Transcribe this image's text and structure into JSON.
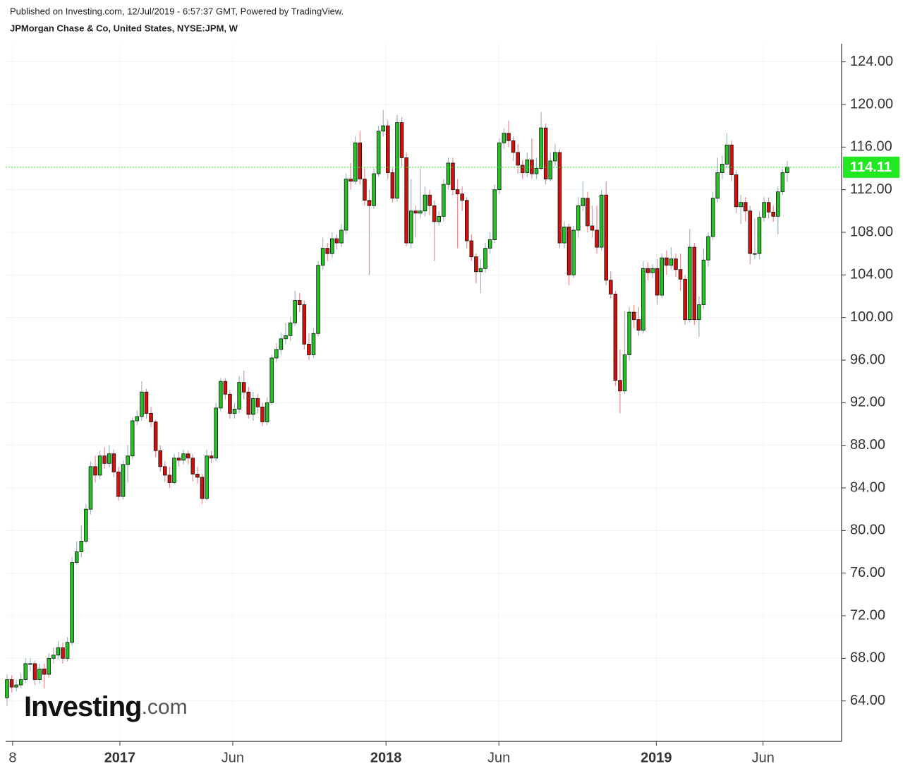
{
  "header": {
    "published": "Published on Investing.com, 12/Jul/2019 - 6:57:37 GMT, Powered by TradingView."
  },
  "watermark": {
    "brand": "Investing",
    "suffix": ".com"
  },
  "chart_data": {
    "type": "candlestick",
    "title": "JPMorgan Chase & Co, United States, NYSE:JPM, W",
    "up_color": "#22c322",
    "down_color": "#d0100c",
    "up_wick": "#9fb8c0",
    "down_wick": "#ee8a90",
    "price_line_color": "#22e822",
    "grid": true,
    "xlim": [
      -0.3,
      179.7
    ],
    "xticks": [
      {
        "value": 1.2,
        "label": "8"
      },
      {
        "value": 24.3,
        "label": "2017"
      },
      {
        "value": 48.6,
        "label": "Jun"
      },
      {
        "value": 81.6,
        "label": "2018"
      },
      {
        "value": 105.9,
        "label": "Jun"
      },
      {
        "value": 139.8,
        "label": "2019"
      },
      {
        "value": 162.8,
        "label": "Jun"
      }
    ],
    "ylim": [
      60.2,
      125.7
    ],
    "yticks": [
      {
        "value": 64,
        "label": "64.00"
      },
      {
        "value": 68,
        "label": "68.00"
      },
      {
        "value": 72,
        "label": "72.00"
      },
      {
        "value": 76,
        "label": "76.00"
      },
      {
        "value": 80,
        "label": "80.00"
      },
      {
        "value": 84,
        "label": "84.00"
      },
      {
        "value": 88,
        "label": "88.00"
      },
      {
        "value": 92,
        "label": "92.00"
      },
      {
        "value": 96,
        "label": "96.00"
      },
      {
        "value": 100,
        "label": "100.00"
      },
      {
        "value": 104,
        "label": "104.00"
      },
      {
        "value": 108,
        "label": "108.00"
      },
      {
        "value": 112,
        "label": "112.00"
      },
      {
        "value": 116,
        "label": "116.00"
      },
      {
        "value": 120,
        "label": "120.00"
      },
      {
        "value": 124,
        "label": "124.00"
      }
    ],
    "open": [
      64.3,
      66,
      65.3,
      65.5,
      66,
      67.5,
      67.5,
      66,
      67,
      66.5,
      68,
      68.3,
      69,
      68,
      69.5,
      77,
      78,
      79,
      82,
      86,
      85.2,
      87,
      86.3,
      87.2,
      85.5,
      83.2,
      86.2,
      87,
      90.3,
      90.7,
      93,
      91,
      90.2,
      87.5,
      86,
      85.2,
      84.5,
      86.8,
      86.6,
      87.2,
      86.8,
      85.3,
      85,
      83,
      87,
      86.8,
      91.5,
      94,
      92.8,
      91,
      91.4,
      93.9,
      93,
      90.9,
      92.4,
      91.6,
      90.2,
      92,
      96.2,
      97,
      98,
      98.3,
      99.5,
      101.6,
      101.2,
      97.5,
      96.5,
      98.5,
      104.9,
      106.5,
      106,
      107.4,
      107,
      108.2,
      113,
      112.8,
      116.4,
      113,
      111,
      110.5,
      113.5,
      117.5,
      118,
      113.6,
      111.2,
      118.3,
      115,
      107,
      110,
      109.8,
      110,
      111.5,
      110.5,
      109,
      109.5,
      112.5,
      114.5,
      112,
      111.6,
      111,
      107.2,
      105.7,
      104.3,
      104.6,
      106.5,
      107.3,
      112,
      116.4,
      117.3,
      116.6,
      115.5,
      114.3,
      113.6,
      114.8,
      113.5,
      114,
      117.8,
      113,
      114.7,
      115.5,
      107,
      108.5,
      104,
      108.2,
      110.5,
      111.2,
      108.6,
      108.2,
      106.6,
      111.5,
      103.5,
      102.2,
      94.1,
      93.1,
      96.5,
      100.5,
      99.8,
      98.8,
      104.6,
      104.2,
      104.6,
      102.1,
      105.6,
      104.9,
      105.5,
      104.5,
      103.6,
      99.8,
      106.6,
      99.8,
      101.2,
      105.4,
      107.6,
      111.2,
      113.6,
      114.4,
      116.2,
      113.4,
      110.4,
      110.8,
      110,
      106,
      106,
      109.4,
      110.8,
      109.9,
      109.5,
      111.8,
      113.6
    ],
    "high": [
      66.5,
      66.4,
      66,
      66.6,
      68,
      68,
      67.8,
      67.5,
      67.5,
      68.5,
      69,
      69.6,
      69.5,
      70,
      77.5,
      79,
      80.5,
      82.5,
      86.5,
      87,
      87.5,
      87.8,
      88,
      87.6,
      86,
      86.6,
      88,
      90.6,
      91.3,
      94,
      93.3,
      91.6,
      90.4,
      88,
      86.5,
      86,
      87.2,
      87.4,
      87.6,
      87.5,
      87.2,
      86,
      85.3,
      87.6,
      87.5,
      92,
      94.3,
      94.3,
      93.2,
      92,
      94.5,
      95,
      93.5,
      93,
      92.8,
      92,
      92.5,
      96.5,
      97.6,
      98.6,
      99.5,
      100,
      102.5,
      102.3,
      101.6,
      98.5,
      99,
      105.3,
      107.5,
      107,
      108,
      107.8,
      108.8,
      113.5,
      114.5,
      117,
      117.5,
      114,
      112,
      114,
      118,
      119.5,
      118.5,
      114,
      119,
      118.8,
      115.5,
      113,
      110.5,
      114,
      112.3,
      112,
      111,
      110,
      113,
      115,
      115,
      113,
      112.3,
      111.3,
      107.8,
      106,
      105.5,
      107,
      108,
      112.5,
      116.8,
      117.8,
      118.5,
      117,
      116.3,
      114.8,
      115.5,
      116.8,
      115,
      119.3,
      118.2,
      115.5,
      116.3,
      115.8,
      109,
      108.8,
      108.6,
      111.3,
      112.8,
      111.8,
      110.5,
      110.5,
      112,
      112.8,
      104.3,
      102.5,
      97,
      100.6,
      101,
      101.2,
      101,
      105.3,
      105.2,
      105,
      105.5,
      106,
      106.3,
      106.6,
      106,
      106,
      104,
      108.3,
      107,
      102,
      106.5,
      108,
      111.8,
      115,
      115.2,
      117.3,
      116.6,
      113.8,
      111.5,
      111.3,
      110.5,
      109.3,
      110,
      111.3,
      111.3,
      110.5,
      112.3,
      114,
      114.7
    ],
    "low": [
      63.5,
      64.8,
      64.9,
      65.2,
      65.7,
      66.8,
      65.5,
      65.6,
      65.2,
      66.2,
      67.5,
      67.9,
      67.5,
      67.7,
      69.2,
      76.8,
      77.5,
      78.8,
      81.5,
      84.5,
      84.8,
      85.8,
      85.9,
      85,
      82.8,
      82.9,
      84.5,
      86.7,
      89.9,
      90.3,
      90.5,
      89.7,
      86.9,
      85.5,
      84.6,
      84,
      84.3,
      86,
      86.2,
      86.2,
      84.6,
      84.4,
      82.5,
      82.8,
      86.3,
      86.5,
      91.2,
      92.3,
      90.5,
      90.5,
      91,
      92.3,
      90.5,
      90.3,
      91,
      89.8,
      89.9,
      91.8,
      95.8,
      96.5,
      97.5,
      97.8,
      99.2,
      100.5,
      97,
      96,
      96.2,
      98.2,
      104.5,
      105.3,
      105.6,
      106.4,
      106.6,
      107.8,
      112,
      112.5,
      112.5,
      110.5,
      104,
      110.2,
      113.2,
      117,
      113,
      110.8,
      110.9,
      114.2,
      106.7,
      106.5,
      107.5,
      109.3,
      109.5,
      109.6,
      105.3,
      108.6,
      109,
      112,
      111.5,
      106.5,
      110,
      106.5,
      105.3,
      103.2,
      102.3,
      104.2,
      106,
      107,
      111.6,
      115.8,
      116,
      114.7,
      113.5,
      113,
      113.2,
      113,
      113,
      113.8,
      112.5,
      112.8,
      114.2,
      106.5,
      106.5,
      103,
      103.7,
      107.5,
      110,
      108,
      107.5,
      106,
      106.3,
      103,
      101.8,
      93.6,
      91,
      92.8,
      96,
      99,
      98.3,
      98.5,
      103.5,
      103.7,
      101.2,
      101.8,
      104,
      104.5,
      103.8,
      102.5,
      99.3,
      99.5,
      99.3,
      98.2,
      100.8,
      104.8,
      107.3,
      110.8,
      113,
      114,
      112.8,
      109.8,
      108.8,
      109,
      105,
      105.5,
      105.5,
      109,
      109.3,
      109,
      107.8,
      111.5,
      112.7
    ],
    "close": [
      66,
      65.3,
      65.5,
      66,
      67.5,
      67.5,
      66,
      67,
      66.5,
      68,
      68.3,
      69,
      68,
      69.5,
      77,
      78,
      79,
      82,
      86,
      85.2,
      87,
      86.3,
      87.2,
      85.5,
      83.2,
      86.2,
      87,
      90.3,
      90.7,
      93,
      91,
      90.2,
      87.5,
      86,
      85.2,
      84.5,
      86.8,
      86.6,
      87.2,
      86.8,
      85.3,
      85,
      83,
      87,
      86.8,
      91.5,
      94,
      92.8,
      91,
      91.4,
      93.9,
      93,
      90.9,
      92.4,
      91.6,
      90.2,
      92,
      96.2,
      97,
      98,
      98.3,
      99.5,
      101.6,
      101.2,
      97.5,
      96.5,
      98.5,
      104.9,
      106.5,
      106,
      107.4,
      107,
      108.2,
      113,
      112.8,
      116.4,
      113,
      111,
      110.5,
      113.5,
      117.5,
      118,
      113.6,
      111.2,
      118.3,
      115,
      107,
      110,
      109.8,
      110,
      111.5,
      110.5,
      109,
      109.5,
      112.5,
      114.5,
      112,
      111.6,
      111,
      107.2,
      105.7,
      104.3,
      104.6,
      106.5,
      107.3,
      112,
      116.4,
      117.3,
      116.6,
      115.5,
      114.3,
      113.6,
      114.8,
      113.5,
      114,
      117.8,
      113,
      114.7,
      115.5,
      107,
      108.5,
      104,
      108.2,
      110.5,
      111.2,
      108.6,
      108.2,
      106.6,
      111.5,
      103.5,
      102.2,
      94.1,
      93.1,
      96.5,
      100.5,
      99.8,
      98.8,
      104.6,
      104.2,
      104.6,
      102.1,
      105.6,
      104.9,
      105.5,
      104.5,
      103.6,
      99.8,
      106.6,
      99.8,
      101.2,
      105.4,
      107.6,
      111.2,
      113.6,
      114.4,
      116.2,
      113.4,
      110.4,
      110.8,
      110,
      106,
      106,
      109.4,
      110.8,
      109.9,
      109.5,
      111.8,
      113.6,
      114.11
    ]
  }
}
